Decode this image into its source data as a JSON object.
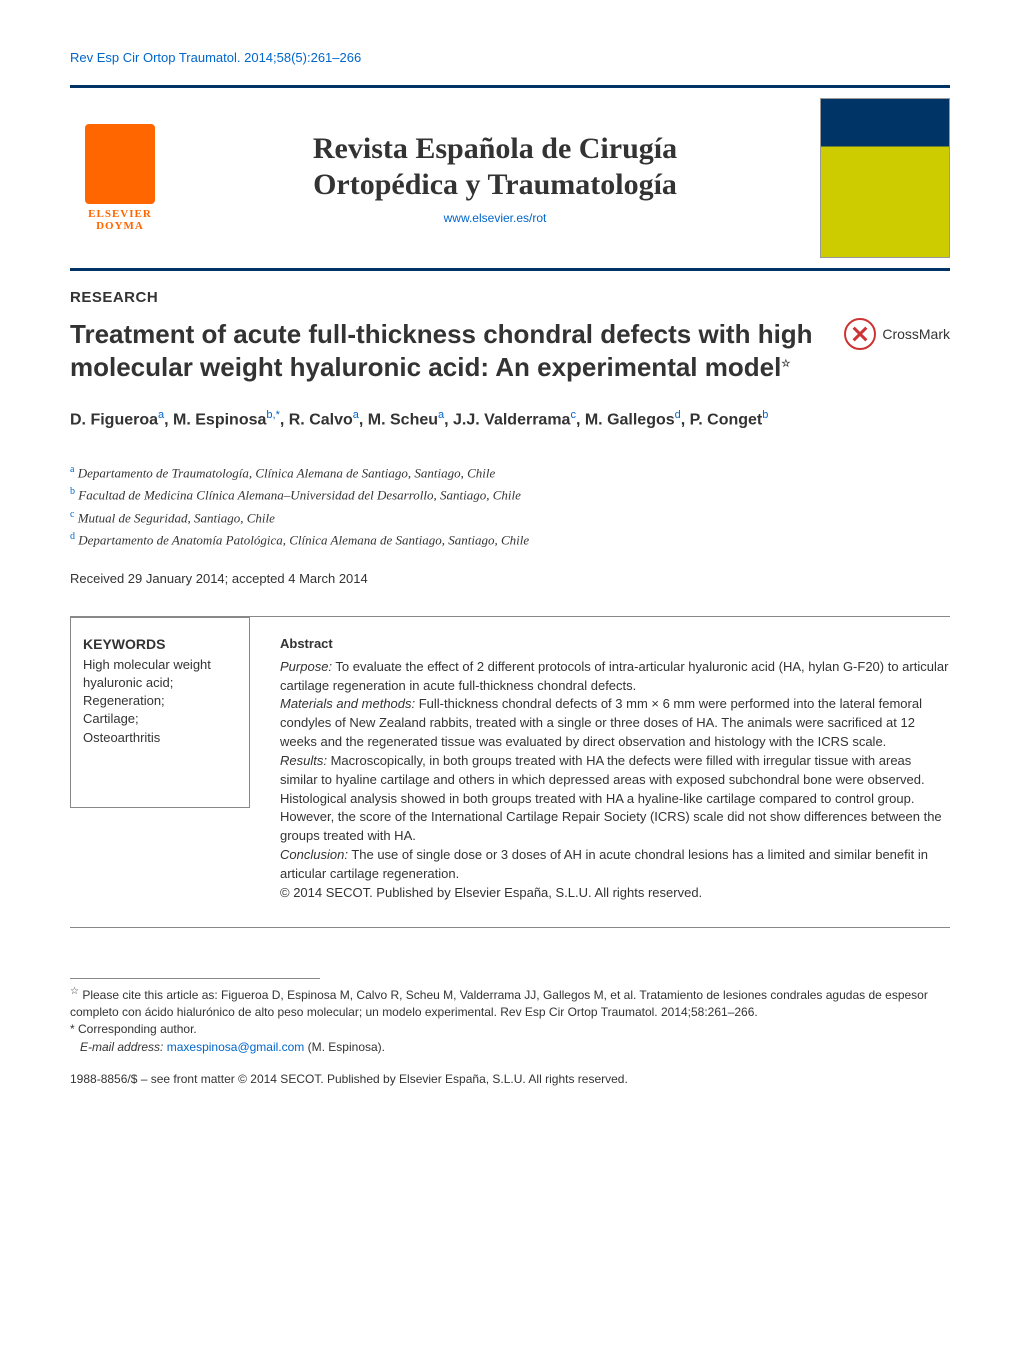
{
  "citation_top": "Rev Esp Cir Ortop Traumatol. 2014;58(5):261–266",
  "publisher_logo_text": "ELSEVIER DOYMA",
  "journal_title_line1": "Revista Española de Cirugía",
  "journal_title_line2": "Ortopédica y Traumatología",
  "journal_url": "www.elsevier.es/rot",
  "section_label": "RESEARCH",
  "article_title": "Treatment of acute full-thickness chondral defects with high molecular weight hyaluronic acid: An experimental model",
  "crossmark_label": "CrossMark",
  "authors_html": "D. Figueroa<sup>a</sup>, M. Espinosa<sup>b,*</sup>, R. Calvo<sup>a</sup>, M. Scheu<sup>a</sup>, J.J. Valderrama<sup>c</sup>, M. Gallegos<sup>d</sup>, P. Conget<sup>b</sup>",
  "affiliations": [
    {
      "sup": "a",
      "text": "Departamento de Traumatología, Clínica Alemana de Santiago, Santiago, Chile"
    },
    {
      "sup": "b",
      "text": "Facultad de Medicina Clínica Alemana–Universidad del Desarrollo, Santiago, Chile"
    },
    {
      "sup": "c",
      "text": "Mutual de Seguridad, Santiago, Chile"
    },
    {
      "sup": "d",
      "text": "Departamento de Anatomía Patológica, Clínica Alemana de Santiago, Santiago, Chile"
    }
  ],
  "dates": "Received 29 January 2014; accepted 4 March 2014",
  "keywords_heading": "KEYWORDS",
  "keywords": "High molecular weight hyaluronic acid;\nRegeneration;\nCartilage;\nOsteoarthritis",
  "abstract_heading": "Abstract",
  "abstract_purpose_label": "Purpose:",
  "abstract_purpose": " To evaluate the effect of 2 different protocols of intra-articular hyaluronic acid (HA, hylan G-F20) to articular cartilage regeneration in acute full-thickness chondral defects.",
  "abstract_methods_label": "Materials and methods:",
  "abstract_methods": " Full-thickness chondral defects of 3 mm × 6 mm were performed into the lateral femoral condyles of New Zealand rabbits, treated with a single or three doses of HA. The animals were sacrificed at 12 weeks and the regenerated tissue was evaluated by direct observation and histology with the ICRS scale.",
  "abstract_results_label": "Results:",
  "abstract_results": " Macroscopically, in both groups treated with HA the defects were filled with irregular tissue with areas similar to hyaline cartilage and others in which depressed areas with exposed subchondral bone were observed. Histological analysis showed in both groups treated with HA a hyaline-like cartilage compared to control group. However, the score of the International Cartilage Repair Society (ICRS) scale did not show differences between the groups treated with HA.",
  "abstract_conclusion_label": "Conclusion:",
  "abstract_conclusion": " The use of single dose or 3 doses of AH in acute chondral lesions has a limited and similar benefit in articular cartilage regeneration.",
  "abstract_copyright": "© 2014 SECOT. Published by Elsevier España, S.L.U. All rights reserved.",
  "footnote_cite": "Please cite this article as: Figueroa D, Espinosa M, Calvo R, Scheu M, Valderrama JJ, Gallegos M, et al. Tratamiento de lesiones condrales agudas de espesor completo con ácido hialurónico de alto peso molecular; un modelo experimental. Rev Esp Cir Ortop Traumatol. 2014;58:261–266.",
  "footnote_corresponding": "Corresponding author.",
  "footnote_email_label": "E-mail address:",
  "footnote_email": "maxespinosa@gmail.com",
  "footnote_email_author": " (M. Espinosa).",
  "issn_line": "1988-8856/$ – see front matter © 2014 SECOT. Published by Elsevier España, S.L.U. All rights reserved.",
  "colors": {
    "link": "#0066cc",
    "brand_orange": "#ff6600",
    "rule": "#003366"
  }
}
